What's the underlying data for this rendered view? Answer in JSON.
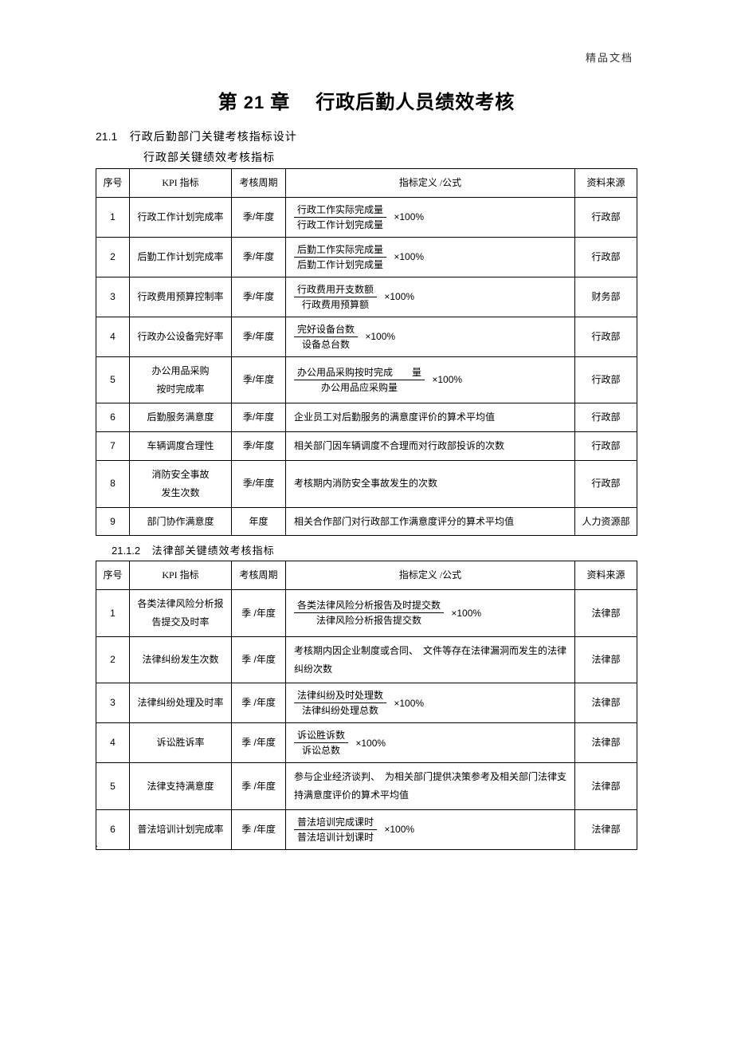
{
  "watermark": "精品文档",
  "chapter": {
    "number_prefix": "第",
    "number": "21",
    "number_suffix": "章",
    "title": "行政后勤人员绩效考核"
  },
  "section": {
    "number": "21.1",
    "title": "行政后勤部门关键考核指标设计"
  },
  "table1_caption": "行政部关键绩效考核指标",
  "headers": {
    "seq": "序号",
    "kpi": "KPI 指标",
    "period": "考核周期",
    "def": "指标定义 /公式",
    "src": "资料来源"
  },
  "pct_suffix": "×100%",
  "table1": {
    "rows": [
      {
        "seq": "1",
        "name": "行政工作计划完成率",
        "period": "季/年度",
        "type": "frac",
        "num": "行政工作实际完成量",
        "den": "行政工作计划完成量",
        "src": "行政部"
      },
      {
        "seq": "2",
        "name": "后勤工作计划完成率",
        "period": "季/年度",
        "type": "frac",
        "num": "后勤工作实际完成量",
        "den": "后勤工作计划完成量",
        "src": "行政部"
      },
      {
        "seq": "3",
        "name": "行政费用预算控制率",
        "period": "季/年度",
        "type": "frac",
        "num": "行政费用开支数额",
        "den": "行政费用预算额",
        "src": "财务部"
      },
      {
        "seq": "4",
        "name": "行政办公设备完好率",
        "period": "季/年度",
        "type": "frac",
        "num": "完好设备台数",
        "den": "设备总台数",
        "src": "行政部"
      },
      {
        "seq": "5",
        "name": "办公用品采购\n按时完成率",
        "period": "季/年度",
        "type": "frac",
        "num": "办公用品采购按时完成　　量",
        "den": "办公用品应采购量",
        "src": "行政部"
      },
      {
        "seq": "6",
        "name": "后勤服务满意度",
        "period": "季/年度",
        "type": "text",
        "text": "企业员工对后勤服务的满意度评价的算术平均值",
        "src": "行政部"
      },
      {
        "seq": "7",
        "name": "车辆调度合理性",
        "period": "季/年度",
        "type": "text",
        "text": "相关部门因车辆调度不合理而对行政部投诉的次数",
        "src": "行政部"
      },
      {
        "seq": "8",
        "name": "消防安全事故\n发生次数",
        "period": "季/年度",
        "type": "text",
        "text": "考核期内消防安全事故发生的次数",
        "src": "行政部"
      },
      {
        "seq": "9",
        "name": "部门协作满意度",
        "period": "年度",
        "type": "text",
        "text": "相关合作部门对行政部工作满意度评分的算术平均值",
        "src": "人力资源部"
      }
    ]
  },
  "subsection": {
    "number": "21.1.2",
    "title": "法律部关键绩效考核指标"
  },
  "table2": {
    "rows": [
      {
        "seq": "1",
        "name": "各类法律风险分析报告提交及时率",
        "period": "季 /年度",
        "type": "frac",
        "num": "各类法律风险分析报告及时提交数",
        "den": "法律风险分析报告提交数",
        "src": "法律部"
      },
      {
        "seq": "2",
        "name": "法律纠纷发生次数",
        "period": "季 /年度",
        "type": "text",
        "text": "考核期内因企业制度或合同、　文件等存在法律漏洞而发生的法律纠纷次数",
        "src": "法律部"
      },
      {
        "seq": "3",
        "name": "法律纠纷处理及时率",
        "period": "季 /年度",
        "type": "frac",
        "num": "法律纠纷及时处理数",
        "den": "法律纠纷处理总数",
        "src": "法律部"
      },
      {
        "seq": "4",
        "name": "诉讼胜诉率",
        "period": "季 /年度",
        "type": "frac",
        "num": "诉讼胜诉数",
        "den": "诉讼总数",
        "src": "法律部"
      },
      {
        "seq": "5",
        "name": "法律支持满意度",
        "period": "季 /年度",
        "type": "text",
        "text": "参与企业经济谈判、　为相关部门提供决策参考及相关部门法律支持满意度评价的算术平均值",
        "src": "法律部"
      },
      {
        "seq": "6",
        "name": "普法培训计划完成率",
        "period": "季 /年度",
        "type": "frac",
        "num": "普法培训完成课时",
        "den": "普法培训计划课时",
        "src": "法律部"
      }
    ]
  },
  "footer_dot": "."
}
